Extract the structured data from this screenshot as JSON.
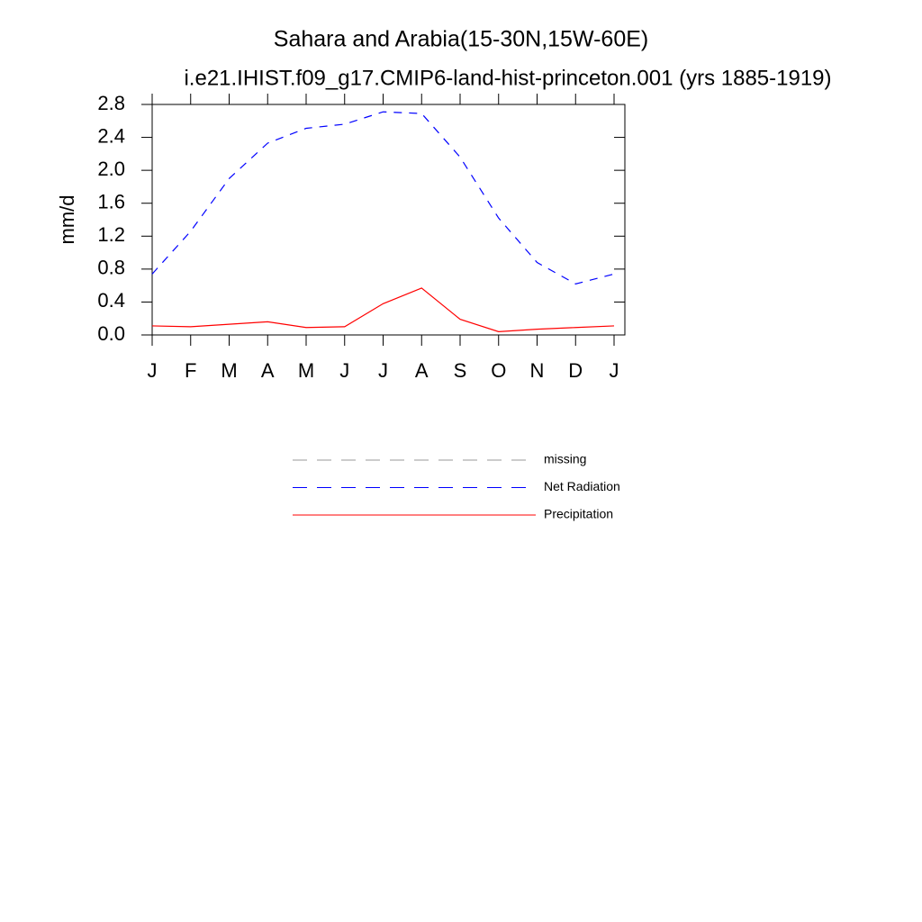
{
  "chart_data": {
    "type": "line",
    "title": "Sahara and Arabia(15-30N,15W-60E)",
    "subtitle": "i.e21.IHIST.f09_g17.CMIP6-land-hist-princeton.001 (yrs 1885-1919)",
    "y_label": "mm/d",
    "categories": [
      "J",
      "F",
      "M",
      "A",
      "M",
      "J",
      "J",
      "A",
      "S",
      "O",
      "N",
      "D",
      "J"
    ],
    "series": [
      {
        "name": "missing",
        "color": "#999999",
        "dash": true,
        "values": [
          null,
          null,
          null,
          null,
          null,
          null,
          null,
          null,
          null,
          null,
          null,
          null,
          null
        ]
      },
      {
        "name": "Net Radiation",
        "color": "#0000ff",
        "dash": true,
        "values": [
          0.74,
          1.26,
          1.9,
          2.33,
          2.51,
          2.56,
          2.71,
          2.69,
          2.16,
          1.42,
          0.88,
          0.62,
          0.74
        ]
      },
      {
        "name": "Precipitation",
        "color": "#ff0000",
        "dash": false,
        "values": [
          0.11,
          0.1,
          0.13,
          0.16,
          0.09,
          0.1,
          0.38,
          0.57,
          0.19,
          0.04,
          0.07,
          0.09,
          0.11
        ]
      }
    ],
    "ylim": [
      0,
      2.8
    ],
    "yticks": [
      {
        "value": 0,
        "label": "0.0"
      },
      0.4,
      0.8,
      1.2,
      1.6,
      {
        "value": 2,
        "label": "2.0"
      },
      2.4,
      2.8
    ]
  }
}
